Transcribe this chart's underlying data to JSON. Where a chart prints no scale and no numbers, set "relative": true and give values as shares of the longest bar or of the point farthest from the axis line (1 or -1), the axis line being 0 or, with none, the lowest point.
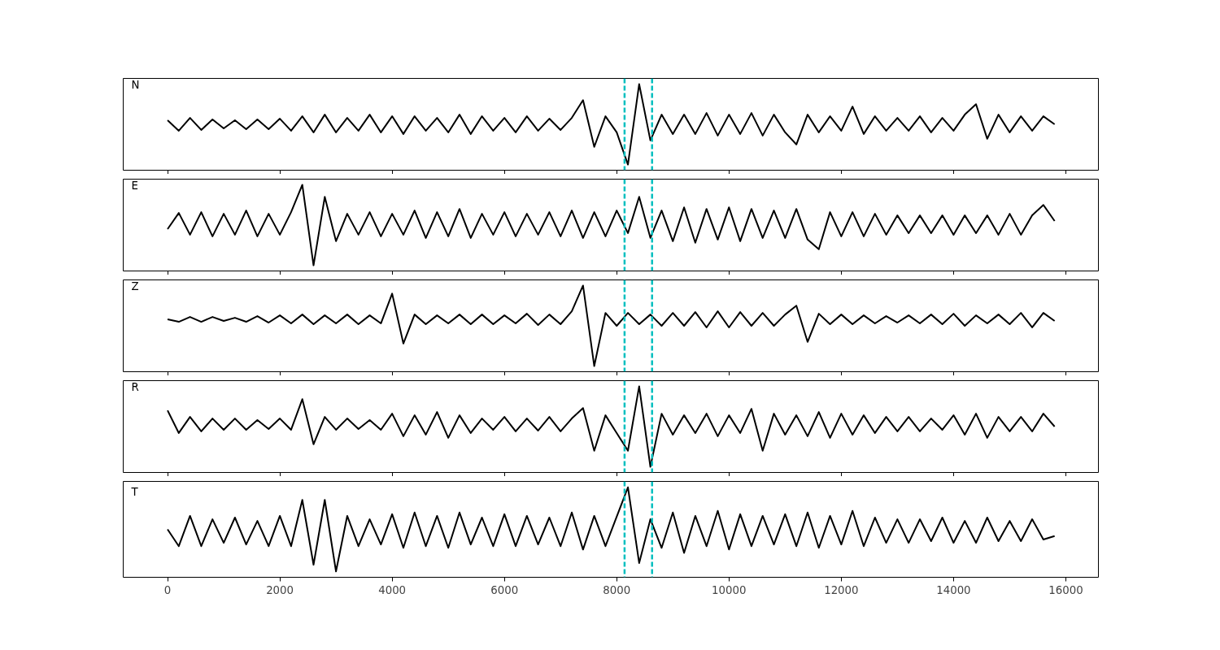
{
  "chart_data": [
    {
      "type": "line",
      "relative": true,
      "tick_labels": false,
      "grid": false,
      "annotations": [
        "N"
      ],
      "xlim": [
        -790,
        16580
      ],
      "xticks": [
        0,
        2000,
        4000,
        6000,
        8000,
        10000,
        12000,
        14000,
        16000
      ],
      "ref_lines": [
        {
          "axis": "x",
          "value": 8140,
          "color": "#00bfbf",
          "line_style": "dashed"
        },
        {
          "axis": "x",
          "value": 8630,
          "color": "#00bfbf",
          "line_style": "dashed"
        }
      ],
      "series": [
        {
          "color": "#000000",
          "x": [
            0,
            200,
            400,
            600,
            800,
            1000,
            1200,
            1400,
            1600,
            1800,
            2000,
            2200,
            2400,
            2600,
            2800,
            3000,
            3200,
            3400,
            3600,
            3800,
            4000,
            4200,
            4400,
            4600,
            4800,
            5000,
            5200,
            5400,
            5600,
            5800,
            6000,
            6200,
            6400,
            6600,
            6800,
            7000,
            7200,
            7400,
            7600,
            7800,
            8000,
            8200,
            8400,
            8600,
            8800,
            9000,
            9200,
            9400,
            9600,
            9800,
            10000,
            10200,
            10400,
            10600,
            10800,
            11000,
            11200,
            11400,
            11600,
            11800,
            12000,
            12200,
            12400,
            12600,
            12800,
            13000,
            13200,
            13400,
            13600,
            13800,
            14000,
            14200,
            14400,
            14600,
            14800,
            15000,
            15200,
            15400,
            15600,
            15800
          ],
          "values": [
            0.55,
            0.42,
            0.58,
            0.43,
            0.56,
            0.45,
            0.55,
            0.44,
            0.56,
            0.44,
            0.57,
            0.42,
            0.6,
            0.4,
            0.62,
            0.4,
            0.58,
            0.42,
            0.62,
            0.4,
            0.6,
            0.38,
            0.6,
            0.42,
            0.58,
            0.4,
            0.62,
            0.38,
            0.6,
            0.42,
            0.58,
            0.4,
            0.6,
            0.42,
            0.57,
            0.43,
            0.58,
            0.8,
            0.22,
            0.6,
            0.4,
            0.0,
            1.0,
            0.3,
            0.62,
            0.38,
            0.62,
            0.38,
            0.64,
            0.36,
            0.62,
            0.38,
            0.64,
            0.36,
            0.62,
            0.4,
            0.25,
            0.62,
            0.4,
            0.6,
            0.42,
            0.72,
            0.38,
            0.6,
            0.42,
            0.58,
            0.42,
            0.6,
            0.4,
            0.58,
            0.42,
            0.62,
            0.75,
            0.32,
            0.62,
            0.4,
            0.6,
            0.42,
            0.6,
            0.5
          ]
        }
      ]
    },
    {
      "type": "line",
      "relative": true,
      "tick_labels": false,
      "grid": false,
      "annotations": [
        "E"
      ],
      "xlim": [
        -790,
        16580
      ],
      "xticks": [
        0,
        2000,
        4000,
        6000,
        8000,
        10000,
        12000,
        14000,
        16000
      ],
      "ref_lines": [
        {
          "axis": "x",
          "value": 8140,
          "color": "#00bfbf",
          "line_style": "dashed"
        },
        {
          "axis": "x",
          "value": 8630,
          "color": "#00bfbf",
          "line_style": "dashed"
        }
      ],
      "series": [
        {
          "color": "#000000",
          "x": [
            0,
            200,
            400,
            600,
            800,
            1000,
            1200,
            1400,
            1600,
            1800,
            2000,
            2200,
            2400,
            2600,
            2800,
            3000,
            3200,
            3400,
            3600,
            3800,
            4000,
            4200,
            4400,
            4600,
            4800,
            5000,
            5200,
            5400,
            5600,
            5800,
            6000,
            6200,
            6400,
            6600,
            6800,
            7000,
            7200,
            7400,
            7600,
            7800,
            8000,
            8200,
            8400,
            8600,
            8800,
            9000,
            9200,
            9400,
            9600,
            9800,
            10000,
            10200,
            10400,
            10600,
            10800,
            11000,
            11200,
            11400,
            11600,
            11800,
            12000,
            12200,
            12400,
            12600,
            12800,
            13000,
            13200,
            13400,
            13600,
            13800,
            14000,
            14200,
            14400,
            14600,
            14800,
            15000,
            15200,
            15400,
            15600,
            15800
          ],
          "values": [
            0.45,
            0.65,
            0.38,
            0.66,
            0.36,
            0.64,
            0.38,
            0.68,
            0.36,
            0.64,
            0.38,
            0.66,
            1.0,
            0.0,
            0.85,
            0.3,
            0.64,
            0.38,
            0.66,
            0.36,
            0.64,
            0.38,
            0.68,
            0.34,
            0.66,
            0.36,
            0.7,
            0.34,
            0.64,
            0.38,
            0.66,
            0.36,
            0.64,
            0.38,
            0.66,
            0.36,
            0.68,
            0.34,
            0.66,
            0.36,
            0.68,
            0.4,
            0.85,
            0.34,
            0.68,
            0.3,
            0.72,
            0.28,
            0.7,
            0.32,
            0.72,
            0.3,
            0.7,
            0.34,
            0.68,
            0.34,
            0.7,
            0.32,
            0.2,
            0.66,
            0.36,
            0.66,
            0.36,
            0.64,
            0.38,
            0.62,
            0.4,
            0.62,
            0.4,
            0.62,
            0.38,
            0.62,
            0.4,
            0.62,
            0.38,
            0.64,
            0.38,
            0.62,
            0.75,
            0.55
          ]
        }
      ]
    },
    {
      "type": "line",
      "relative": true,
      "tick_labels": false,
      "grid": false,
      "annotations": [
        "Z"
      ],
      "xlim": [
        -790,
        16580
      ],
      "xticks": [
        0,
        2000,
        4000,
        6000,
        8000,
        10000,
        12000,
        14000,
        16000
      ],
      "ref_lines": [
        {
          "axis": "x",
          "value": 8140,
          "color": "#00bfbf",
          "line_style": "dashed"
        },
        {
          "axis": "x",
          "value": 8630,
          "color": "#00bfbf",
          "line_style": "dashed"
        }
      ],
      "series": [
        {
          "color": "#000000",
          "x": [
            0,
            200,
            400,
            600,
            800,
            1000,
            1200,
            1400,
            1600,
            1800,
            2000,
            2200,
            2400,
            2600,
            2800,
            3000,
            3200,
            3400,
            3600,
            3800,
            4000,
            4200,
            4400,
            4600,
            4800,
            5000,
            5200,
            5400,
            5600,
            5800,
            6000,
            6200,
            6400,
            6600,
            6800,
            7000,
            7200,
            7400,
            7600,
            7800,
            8000,
            8200,
            8400,
            8600,
            8800,
            9000,
            9200,
            9400,
            9600,
            9800,
            10000,
            10200,
            10400,
            10600,
            10800,
            11000,
            11200,
            11400,
            11600,
            11800,
            12000,
            12200,
            12400,
            12600,
            12800,
            13000,
            13200,
            13400,
            13600,
            13800,
            14000,
            14200,
            14400,
            14600,
            14800,
            15000,
            15200,
            15400,
            15600,
            15800
          ],
          "values": [
            0.58,
            0.55,
            0.61,
            0.55,
            0.61,
            0.56,
            0.6,
            0.55,
            0.62,
            0.54,
            0.63,
            0.53,
            0.64,
            0.52,
            0.63,
            0.53,
            0.64,
            0.52,
            0.63,
            0.53,
            0.9,
            0.28,
            0.64,
            0.52,
            0.63,
            0.53,
            0.64,
            0.52,
            0.64,
            0.52,
            0.63,
            0.53,
            0.65,
            0.51,
            0.64,
            0.52,
            0.68,
            1.0,
            0.0,
            0.66,
            0.5,
            0.66,
            0.52,
            0.64,
            0.5,
            0.66,
            0.5,
            0.67,
            0.48,
            0.68,
            0.48,
            0.67,
            0.5,
            0.66,
            0.5,
            0.64,
            0.75,
            0.3,
            0.65,
            0.52,
            0.64,
            0.52,
            0.63,
            0.53,
            0.62,
            0.54,
            0.63,
            0.53,
            0.64,
            0.52,
            0.65,
            0.5,
            0.63,
            0.53,
            0.64,
            0.52,
            0.66,
            0.48,
            0.66,
            0.56
          ]
        }
      ]
    },
    {
      "type": "line",
      "relative": true,
      "tick_labels": false,
      "grid": false,
      "annotations": [
        "R"
      ],
      "xlim": [
        -790,
        16580
      ],
      "xticks": [
        0,
        2000,
        4000,
        6000,
        8000,
        10000,
        12000,
        14000,
        16000
      ],
      "ref_lines": [
        {
          "axis": "x",
          "value": 8140,
          "color": "#00bfbf",
          "line_style": "dashed"
        },
        {
          "axis": "x",
          "value": 8630,
          "color": "#00bfbf",
          "line_style": "dashed"
        }
      ],
      "series": [
        {
          "color": "#000000",
          "x": [
            0,
            200,
            400,
            600,
            800,
            1000,
            1200,
            1400,
            1600,
            1800,
            2000,
            2200,
            2400,
            2600,
            2800,
            3000,
            3200,
            3400,
            3600,
            3800,
            4000,
            4200,
            4400,
            4600,
            4800,
            5000,
            5200,
            5400,
            5600,
            5800,
            6000,
            6200,
            6400,
            6600,
            6800,
            7000,
            7200,
            7400,
            7600,
            7800,
            8000,
            8200,
            8400,
            8600,
            8800,
            9000,
            9200,
            9400,
            9600,
            9800,
            10000,
            10200,
            10400,
            10600,
            10800,
            11000,
            11200,
            11400,
            11600,
            11800,
            12000,
            12200,
            12400,
            12600,
            12800,
            13000,
            13200,
            13400,
            13600,
            13800,
            14000,
            14200,
            14400,
            14600,
            14800,
            15000,
            15200,
            15400,
            15600,
            15800
          ],
          "values": [
            0.7,
            0.42,
            0.62,
            0.44,
            0.6,
            0.46,
            0.6,
            0.46,
            0.58,
            0.47,
            0.6,
            0.46,
            0.84,
            0.28,
            0.62,
            0.46,
            0.6,
            0.47,
            0.58,
            0.46,
            0.66,
            0.38,
            0.64,
            0.4,
            0.68,
            0.36,
            0.64,
            0.42,
            0.6,
            0.46,
            0.62,
            0.44,
            0.6,
            0.45,
            0.62,
            0.44,
            0.6,
            0.73,
            0.2,
            0.64,
            0.42,
            0.2,
            1.0,
            0.0,
            0.66,
            0.4,
            0.64,
            0.42,
            0.66,
            0.38,
            0.64,
            0.42,
            0.72,
            0.2,
            0.66,
            0.4,
            0.64,
            0.38,
            0.68,
            0.36,
            0.66,
            0.4,
            0.64,
            0.42,
            0.62,
            0.44,
            0.62,
            0.44,
            0.6,
            0.46,
            0.64,
            0.4,
            0.66,
            0.36,
            0.62,
            0.44,
            0.62,
            0.44,
            0.66,
            0.5
          ]
        }
      ]
    },
    {
      "type": "line",
      "relative": true,
      "tick_labels": "x",
      "grid": false,
      "annotations": [
        "T"
      ],
      "xlim": [
        -790,
        16580
      ],
      "xticks": [
        0,
        2000,
        4000,
        6000,
        8000,
        10000,
        12000,
        14000,
        16000
      ],
      "ref_lines": [
        {
          "axis": "x",
          "value": 8140,
          "color": "#00bfbf",
          "line_style": "dashed"
        },
        {
          "axis": "x",
          "value": 8630,
          "color": "#00bfbf",
          "line_style": "dashed"
        }
      ],
      "series": [
        {
          "color": "#000000",
          "x": [
            0,
            200,
            400,
            600,
            800,
            1000,
            1200,
            1400,
            1600,
            1800,
            2000,
            2200,
            2400,
            2600,
            2800,
            3000,
            3200,
            3400,
            3600,
            3800,
            4000,
            4200,
            4400,
            4600,
            4800,
            5000,
            5200,
            5400,
            5600,
            5800,
            6000,
            6200,
            6400,
            6600,
            6800,
            7000,
            7200,
            7400,
            7600,
            7800,
            8000,
            8200,
            8400,
            8600,
            8800,
            9000,
            9200,
            9400,
            9600,
            9800,
            10000,
            10200,
            10400,
            10600,
            10800,
            11000,
            11200,
            11400,
            11600,
            11800,
            12000,
            12200,
            12400,
            12600,
            12800,
            13000,
            13200,
            13400,
            13600,
            13800,
            14000,
            14200,
            14400,
            14600,
            14800,
            15000,
            15200,
            15400,
            15600,
            15800
          ],
          "values": [
            0.5,
            0.3,
            0.66,
            0.3,
            0.62,
            0.34,
            0.64,
            0.32,
            0.6,
            0.3,
            0.66,
            0.3,
            0.85,
            0.08,
            0.85,
            0.0,
            0.66,
            0.3,
            0.62,
            0.32,
            0.68,
            0.28,
            0.7,
            0.3,
            0.66,
            0.28,
            0.7,
            0.32,
            0.64,
            0.3,
            0.68,
            0.3,
            0.66,
            0.32,
            0.64,
            0.3,
            0.7,
            0.26,
            0.66,
            0.3,
            0.65,
            1.0,
            0.1,
            0.62,
            0.28,
            0.7,
            0.22,
            0.66,
            0.3,
            0.72,
            0.26,
            0.68,
            0.3,
            0.66,
            0.32,
            0.68,
            0.3,
            0.7,
            0.28,
            0.66,
            0.32,
            0.72,
            0.3,
            0.64,
            0.34,
            0.62,
            0.34,
            0.62,
            0.36,
            0.64,
            0.34,
            0.6,
            0.34,
            0.64,
            0.36,
            0.6,
            0.36,
            0.62,
            0.38,
            0.42
          ]
        }
      ]
    }
  ]
}
